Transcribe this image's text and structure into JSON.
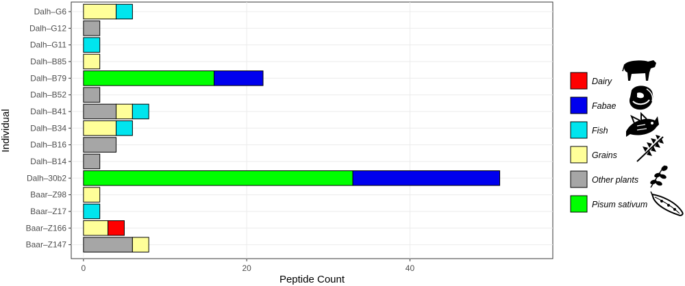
{
  "chart_data": {
    "type": "bar",
    "orientation": "horizontal",
    "stacked": true,
    "xlabel": "Peptide Count",
    "ylabel": "Individual",
    "xlim": [
      -1.5,
      57.5
    ],
    "xticks": [
      0,
      20,
      40
    ],
    "grid": true,
    "legend_position": "right",
    "categories": [
      "Dalh–G6",
      "Dalh–G12",
      "Dalh–G11",
      "Dalh–B85",
      "Dalh–B79",
      "Dalh–B52",
      "Dalh–B41",
      "Dalh–B34",
      "Dalh–B16",
      "Dalh–B14",
      "Dalh–30b2",
      "Baar–Z98",
      "Baar–Z17",
      "Baar–Z166",
      "Baar–Z147"
    ],
    "series": [
      {
        "name": "Other plants",
        "color": "#a6a6a6",
        "icon": "leaf-sprig-icon",
        "values": [
          0,
          2,
          0,
          0,
          0,
          2,
          4,
          0,
          4,
          2,
          0,
          0,
          0,
          0,
          6
        ]
      },
      {
        "name": "Pisum sativum",
        "color": "#00ff00",
        "icon": "pea-pod-icon",
        "values": [
          0,
          0,
          0,
          0,
          16,
          0,
          0,
          0,
          0,
          0,
          33,
          0,
          0,
          0,
          0
        ]
      },
      {
        "name": "Grains",
        "color": "#ffff99",
        "icon": "wheat-icon",
        "values": [
          4,
          0,
          0,
          2,
          0,
          0,
          2,
          4,
          0,
          0,
          0,
          2,
          0,
          3,
          2
        ]
      },
      {
        "name": "Fish",
        "color": "#00e5ee",
        "icon": "fish-icon",
        "values": [
          2,
          0,
          2,
          0,
          0,
          0,
          2,
          2,
          0,
          0,
          0,
          0,
          2,
          0,
          0
        ]
      },
      {
        "name": "Dairy",
        "color": "#ff0000",
        "icon": "cow-icon",
        "values": [
          0,
          0,
          0,
          0,
          0,
          0,
          0,
          0,
          0,
          0,
          0,
          0,
          0,
          2,
          0
        ]
      },
      {
        "name": "Fabae",
        "color": "#0000ee",
        "icon": "bean-icon",
        "values": [
          0,
          0,
          0,
          0,
          6,
          0,
          0,
          0,
          0,
          0,
          18,
          0,
          0,
          0,
          0
        ]
      }
    ],
    "legend_order": [
      "Dairy",
      "Fabae",
      "Fish",
      "Grains",
      "Other plants",
      "Pisum sativum"
    ]
  }
}
